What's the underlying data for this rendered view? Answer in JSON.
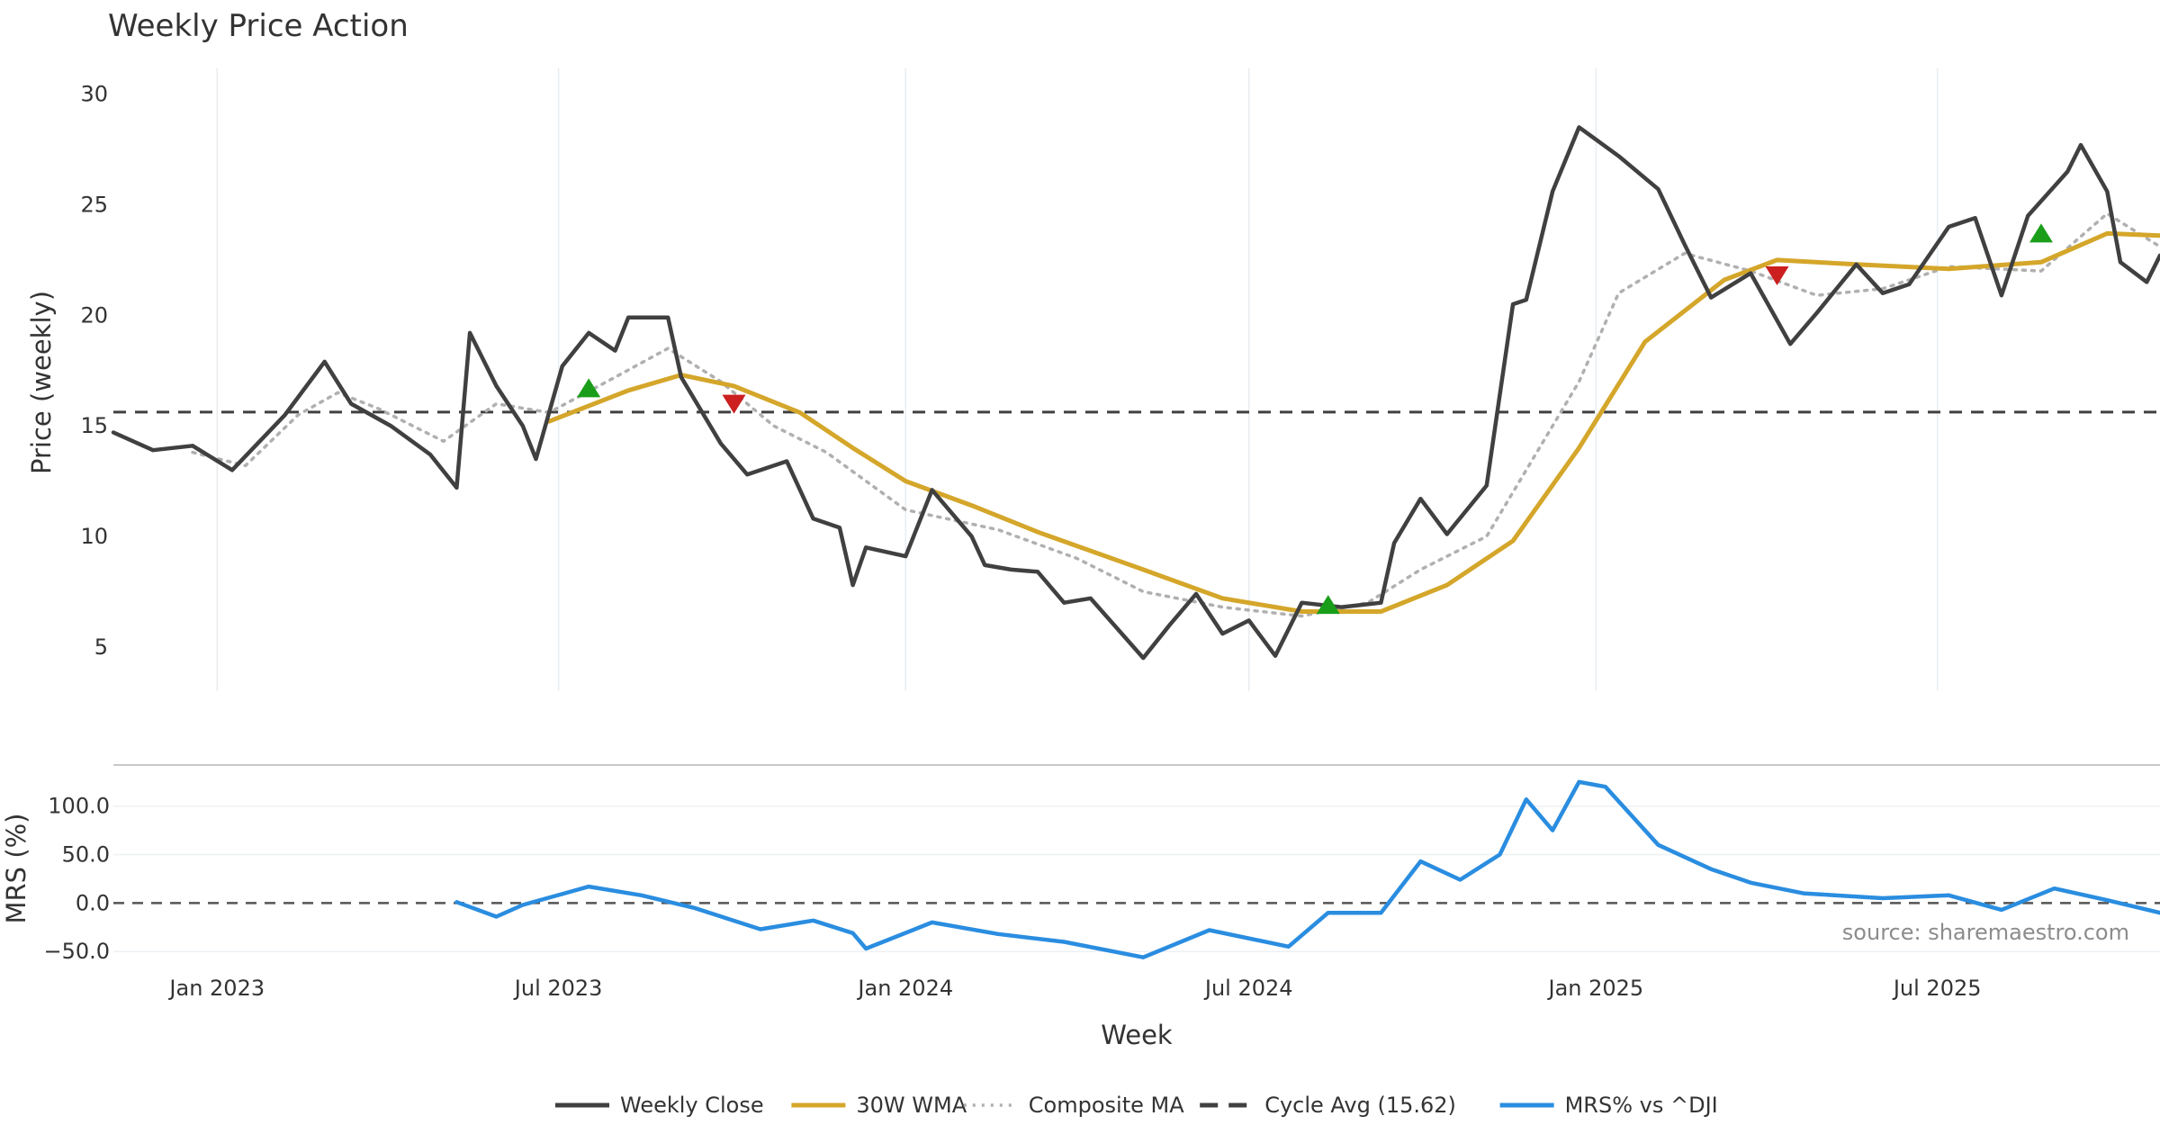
{
  "chart_data": [
    {
      "type": "line",
      "title": "Weekly Price Action",
      "ylabel": "Price (weekly)",
      "ylim": [
        3,
        31
      ],
      "yticks": [
        5,
        10,
        15,
        20,
        25,
        30
      ],
      "x_range": [
        "2022-11-07",
        "2025-10-27"
      ],
      "series": [
        {
          "name": "Weekly Close",
          "color": "#404040",
          "style": "solid",
          "points": [
            [
              "2022-11-07",
              14.7
            ],
            [
              "2022-11-28",
              13.9
            ],
            [
              "2022-12-19",
              14.1
            ],
            [
              "2023-01-09",
              13.0
            ],
            [
              "2023-02-06",
              15.5
            ],
            [
              "2023-02-27",
              17.9
            ],
            [
              "2023-03-13",
              16.0
            ],
            [
              "2023-04-03",
              15.0
            ],
            [
              "2023-04-24",
              13.7
            ],
            [
              "2023-05-08",
              12.2
            ],
            [
              "2023-05-15",
              19.2
            ],
            [
              "2023-05-29",
              16.8
            ],
            [
              "2023-06-12",
              15.0
            ],
            [
              "2023-06-19",
              13.5
            ],
            [
              "2023-07-03",
              17.7
            ],
            [
              "2023-07-17",
              19.2
            ],
            [
              "2023-07-31",
              18.4
            ],
            [
              "2023-08-07",
              19.9
            ],
            [
              "2023-08-28",
              19.9
            ],
            [
              "2023-09-04",
              17.2
            ],
            [
              "2023-09-25",
              14.2
            ],
            [
              "2023-10-09",
              12.8
            ],
            [
              "2023-10-30",
              13.4
            ],
            [
              "2023-11-13",
              10.8
            ],
            [
              "2023-11-27",
              10.4
            ],
            [
              "2023-12-04",
              7.8
            ],
            [
              "2023-12-11",
              9.5
            ],
            [
              "2024-01-01",
              9.1
            ],
            [
              "2024-01-15",
              12.1
            ],
            [
              "2024-02-05",
              10.0
            ],
            [
              "2024-02-12",
              8.7
            ],
            [
              "2024-02-26",
              8.5
            ],
            [
              "2024-03-11",
              8.4
            ],
            [
              "2024-03-25",
              7.0
            ],
            [
              "2024-04-08",
              7.2
            ],
            [
              "2024-05-06",
              4.5
            ],
            [
              "2024-05-20",
              6.0
            ],
            [
              "2024-06-03",
              7.4
            ],
            [
              "2024-06-17",
              5.6
            ],
            [
              "2024-07-01",
              6.2
            ],
            [
              "2024-07-15",
              4.6
            ],
            [
              "2024-07-29",
              7.0
            ],
            [
              "2024-08-19",
              6.8
            ],
            [
              "2024-09-09",
              7.0
            ],
            [
              "2024-09-16",
              9.7
            ],
            [
              "2024-09-30",
              11.7
            ],
            [
              "2024-10-14",
              10.1
            ],
            [
              "2024-11-04",
              12.3
            ],
            [
              "2024-11-18",
              20.5
            ],
            [
              "2024-11-25",
              20.7
            ],
            [
              "2024-12-09",
              25.6
            ],
            [
              "2024-12-23",
              28.5
            ],
            [
              "2025-01-13",
              27.2
            ],
            [
              "2025-02-03",
              25.7
            ],
            [
              "2025-02-17",
              23.2
            ],
            [
              "2025-03-03",
              20.8
            ],
            [
              "2025-03-24",
              21.9
            ],
            [
              "2025-04-14",
              18.7
            ],
            [
              "2025-04-28",
              20.1
            ],
            [
              "2025-05-19",
              22.3
            ],
            [
              "2025-06-02",
              21.0
            ],
            [
              "2025-06-16",
              21.4
            ],
            [
              "2025-07-07",
              24.0
            ],
            [
              "2025-07-21",
              24.4
            ],
            [
              "2025-08-04",
              20.9
            ],
            [
              "2025-08-18",
              24.5
            ],
            [
              "2025-09-08",
              26.5
            ],
            [
              "2025-09-15",
              27.7
            ],
            [
              "2025-09-29",
              25.6
            ],
            [
              "2025-10-06",
              22.4
            ],
            [
              "2025-10-20",
              21.5
            ],
            [
              "2025-10-27",
              22.7
            ]
          ]
        },
        {
          "name": "30W WMA",
          "color": "#d4a62a",
          "style": "solid",
          "points": [
            [
              "2023-06-26",
              15.2
            ],
            [
              "2023-08-07",
              16.6
            ],
            [
              "2023-09-04",
              17.3
            ],
            [
              "2023-10-02",
              16.8
            ],
            [
              "2023-11-06",
              15.6
            ],
            [
              "2023-12-04",
              14.0
            ],
            [
              "2024-01-01",
              12.5
            ],
            [
              "2024-02-05",
              11.4
            ],
            [
              "2024-03-11",
              10.2
            ],
            [
              "2024-05-06",
              8.5
            ],
            [
              "2024-06-17",
              7.2
            ],
            [
              "2024-07-29",
              6.6
            ],
            [
              "2024-09-09",
              6.6
            ],
            [
              "2024-10-14",
              7.8
            ],
            [
              "2024-11-18",
              9.8
            ],
            [
              "2024-12-23",
              14.0
            ],
            [
              "2025-01-27",
              18.8
            ],
            [
              "2025-03-10",
              21.6
            ],
            [
              "2025-04-07",
              22.5
            ],
            [
              "2025-05-19",
              22.3
            ],
            [
              "2025-07-07",
              22.1
            ],
            [
              "2025-08-25",
              22.4
            ],
            [
              "2025-09-29",
              23.7
            ],
            [
              "2025-10-27",
              23.6
            ]
          ]
        },
        {
          "name": "Composite MA",
          "color": "#b0b0b0",
          "style": "dotted",
          "points": [
            [
              "2022-12-19",
              13.8
            ],
            [
              "2023-01-16",
              13.2
            ],
            [
              "2023-02-13",
              15.5
            ],
            [
              "2023-03-06",
              16.5
            ],
            [
              "2023-03-27",
              15.8
            ],
            [
              "2023-05-01",
              14.3
            ],
            [
              "2023-05-29",
              16.0
            ],
            [
              "2023-06-26",
              15.6
            ],
            [
              "2023-07-31",
              17.2
            ],
            [
              "2023-08-28",
              18.5
            ],
            [
              "2023-09-25",
              17.0
            ],
            [
              "2023-10-23",
              15.0
            ],
            [
              "2023-11-20",
              13.8
            ],
            [
              "2024-01-01",
              11.2
            ],
            [
              "2024-02-19",
              10.3
            ],
            [
              "2024-04-01",
              9.0
            ],
            [
              "2024-05-06",
              7.5
            ],
            [
              "2024-06-17",
              6.8
            ],
            [
              "2024-07-29",
              6.4
            ],
            [
              "2024-09-02",
              7.0
            ],
            [
              "2024-09-30",
              8.5
            ],
            [
              "2024-11-04",
              10.0
            ],
            [
              "2024-11-25",
              13.0
            ],
            [
              "2024-12-23",
              17.0
            ],
            [
              "2025-01-13",
              21.0
            ],
            [
              "2025-02-17",
              22.8
            ],
            [
              "2025-03-24",
              22.0
            ],
            [
              "2025-04-28",
              20.9
            ],
            [
              "2025-06-02",
              21.2
            ],
            [
              "2025-07-07",
              22.2
            ],
            [
              "2025-08-25",
              22.0
            ],
            [
              "2025-09-29",
              24.6
            ],
            [
              "2025-10-27",
              23.1
            ]
          ]
        },
        {
          "name": "Cycle Avg (15.62)",
          "color": "#404040",
          "style": "dashed",
          "value": 15.62
        }
      ],
      "markers": {
        "buy": {
          "color": "#1a9e1a",
          "points": [
            [
              "2023-07-17",
              16.7
            ],
            [
              "2024-08-12",
              6.9
            ],
            [
              "2025-08-25",
              23.7
            ]
          ]
        },
        "sell": {
          "color": "#cc1f1f",
          "points": [
            [
              "2023-10-02",
              16.0
            ],
            [
              "2025-04-07",
              21.8
            ]
          ]
        }
      }
    },
    {
      "type": "line",
      "title": "",
      "ylabel": "MRS (%)",
      "ylim": [
        -60,
        135
      ],
      "yticks": [
        -50,
        0,
        50,
        100
      ],
      "ytick_labels": [
        "−50.0",
        "0.0",
        "50.0",
        "100.0"
      ],
      "baseline": 0,
      "series": [
        {
          "name": "MRS% vs ^DJI",
          "color": "#2a8de0",
          "points": [
            [
              "2023-05-08",
              1
            ],
            [
              "2023-05-29",
              -14
            ],
            [
              "2023-06-12",
              -2
            ],
            [
              "2023-07-17",
              17
            ],
            [
              "2023-08-14",
              8
            ],
            [
              "2023-09-11",
              -5
            ],
            [
              "2023-10-16",
              -27
            ],
            [
              "2023-11-13",
              -18
            ],
            [
              "2023-12-04",
              -31
            ],
            [
              "2023-12-11",
              -47
            ],
            [
              "2024-01-15",
              -20
            ],
            [
              "2024-02-19",
              -32
            ],
            [
              "2024-03-25",
              -40
            ],
            [
              "2024-05-06",
              -56
            ],
            [
              "2024-06-10",
              -28
            ],
            [
              "2024-07-22",
              -45
            ],
            [
              "2024-08-12",
              -10
            ],
            [
              "2024-09-09",
              -10
            ],
            [
              "2024-09-30",
              43
            ],
            [
              "2024-10-21",
              24
            ],
            [
              "2024-11-11",
              50
            ],
            [
              "2024-11-25",
              107
            ],
            [
              "2024-12-09",
              75
            ],
            [
              "2024-12-23",
              125
            ],
            [
              "2025-01-06",
              120
            ],
            [
              "2025-02-03",
              60
            ],
            [
              "2025-03-03",
              35
            ],
            [
              "2025-03-24",
              21
            ],
            [
              "2025-04-21",
              10
            ],
            [
              "2025-06-02",
              5
            ],
            [
              "2025-07-07",
              8
            ],
            [
              "2025-08-04",
              -7
            ],
            [
              "2025-09-01",
              15
            ],
            [
              "2025-09-29",
              3
            ],
            [
              "2025-10-27",
              -10
            ]
          ]
        }
      ],
      "source": "source: sharemaestro.com"
    }
  ],
  "x_axis": {
    "label": "Week",
    "ticks": [
      {
        "date": "2023-01-01",
        "label": "Jan 2023"
      },
      {
        "date": "2023-07-01",
        "label": "Jul 2023"
      },
      {
        "date": "2024-01-01",
        "label": "Jan 2024"
      },
      {
        "date": "2024-07-01",
        "label": "Jul 2024"
      },
      {
        "date": "2025-01-01",
        "label": "Jan 2025"
      },
      {
        "date": "2025-07-01",
        "label": "Jul 2025"
      }
    ]
  },
  "legend": {
    "placement": "bottom-center",
    "entries": [
      "Weekly Close",
      "30W WMA",
      "Composite MA",
      "Cycle Avg (15.62)",
      "MRS% vs ^DJI"
    ]
  }
}
